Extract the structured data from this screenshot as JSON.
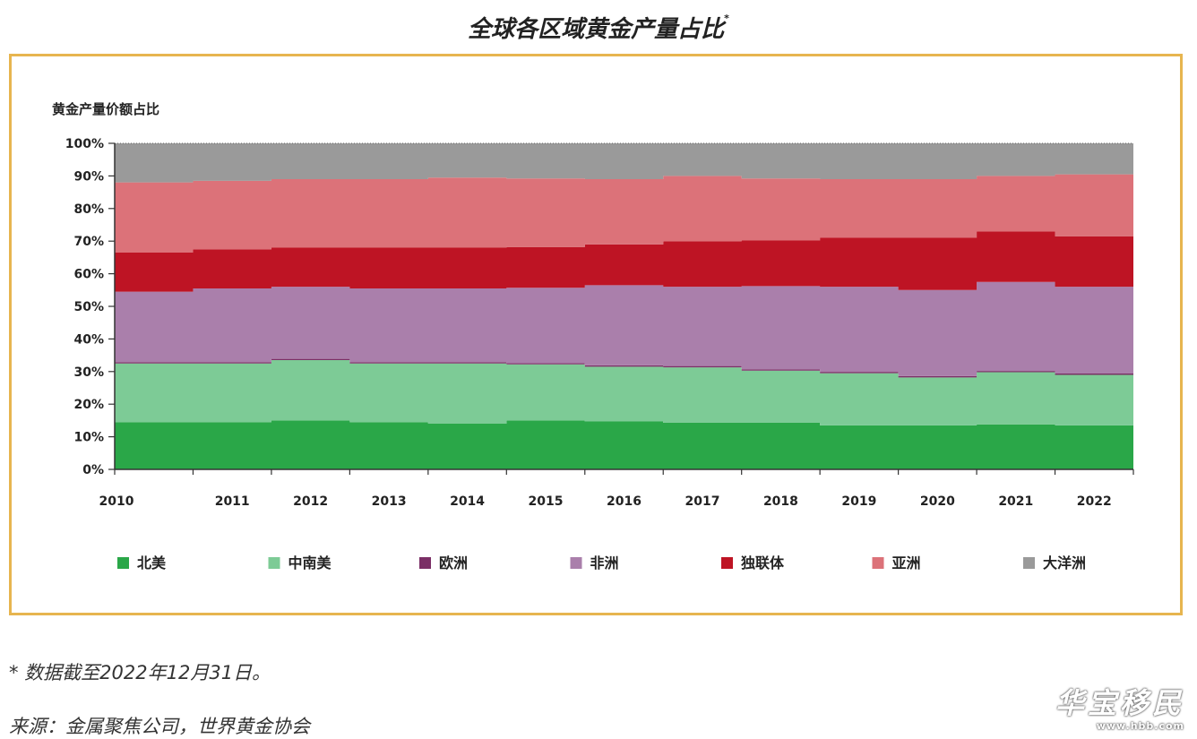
{
  "title": "全球各区域黄金产量占比",
  "title_mark": "*",
  "footnote": "* 数据截至2022年12月31日。",
  "source": "来源：金属聚焦公司，世界黄金协会",
  "watermark": {
    "text": "华宝移民",
    "url": "www.hbb.com"
  },
  "colors": {
    "北美": "#2aa748",
    "中南美": "#7dcb96",
    "欧洲": "#7b2f66",
    "非洲": "#aa7fab",
    "独联体": "#be1424",
    "亚洲": "#dc7279",
    "大洋洲": "#9a9a9a",
    "frame": "#e7b54f"
  },
  "chart_data": {
    "type": "area",
    "stacked": true,
    "ylabel": "黄金产量价额占比",
    "ylim": [
      0,
      100
    ],
    "yticks": [
      0,
      10,
      20,
      30,
      40,
      50,
      60,
      70,
      80,
      90,
      100
    ],
    "ytick_labels": [
      "0%",
      "10%",
      "20%",
      "30%",
      "40%",
      "50%",
      "60%",
      "70%",
      "80%",
      "90%",
      "100%"
    ],
    "categories": [
      "2010",
      "2011",
      "2012",
      "2013",
      "2014",
      "2015",
      "2016",
      "2017",
      "2018",
      "2019",
      "2020",
      "2021",
      "2022"
    ],
    "legend_position": "bottom",
    "series": [
      {
        "name": "北美",
        "values": [
          14.5,
          14.5,
          15.0,
          14.5,
          14.0,
          15.0,
          14.7,
          14.3,
          14.3,
          13.5,
          13.5,
          13.8,
          13.5
        ]
      },
      {
        "name": "中南美",
        "values": [
          18.0,
          18.0,
          18.5,
          18.0,
          18.5,
          17.2,
          16.8,
          17.0,
          16.0,
          16.0,
          14.7,
          16.0,
          15.5
        ]
      },
      {
        "name": "欧洲",
        "values": [
          0.4,
          0.4,
          0.4,
          0.4,
          0.4,
          0.4,
          0.4,
          0.4,
          0.4,
          0.4,
          0.4,
          0.4,
          0.4
        ]
      },
      {
        "name": "非洲",
        "values": [
          21.6,
          22.6,
          22.1,
          22.6,
          22.6,
          23.1,
          24.6,
          24.3,
          25.5,
          26.1,
          26.4,
          27.3,
          26.6
        ]
      },
      {
        "name": "独联体",
        "values": [
          12.0,
          12.0,
          12.0,
          12.5,
          12.5,
          12.5,
          12.5,
          14.0,
          14.0,
          15.0,
          16.0,
          15.5,
          15.5
        ]
      },
      {
        "name": "亚洲",
        "values": [
          21.5,
          21.0,
          21.0,
          21.0,
          21.5,
          21.0,
          20.0,
          20.0,
          19.0,
          18.0,
          18.0,
          17.0,
          19.0
        ]
      },
      {
        "name": "大洋洲",
        "values": [
          12.0,
          11.5,
          11.0,
          11.0,
          10.5,
          10.8,
          11.0,
          10.0,
          10.8,
          11.0,
          11.0,
          10.0,
          9.5
        ]
      }
    ]
  }
}
